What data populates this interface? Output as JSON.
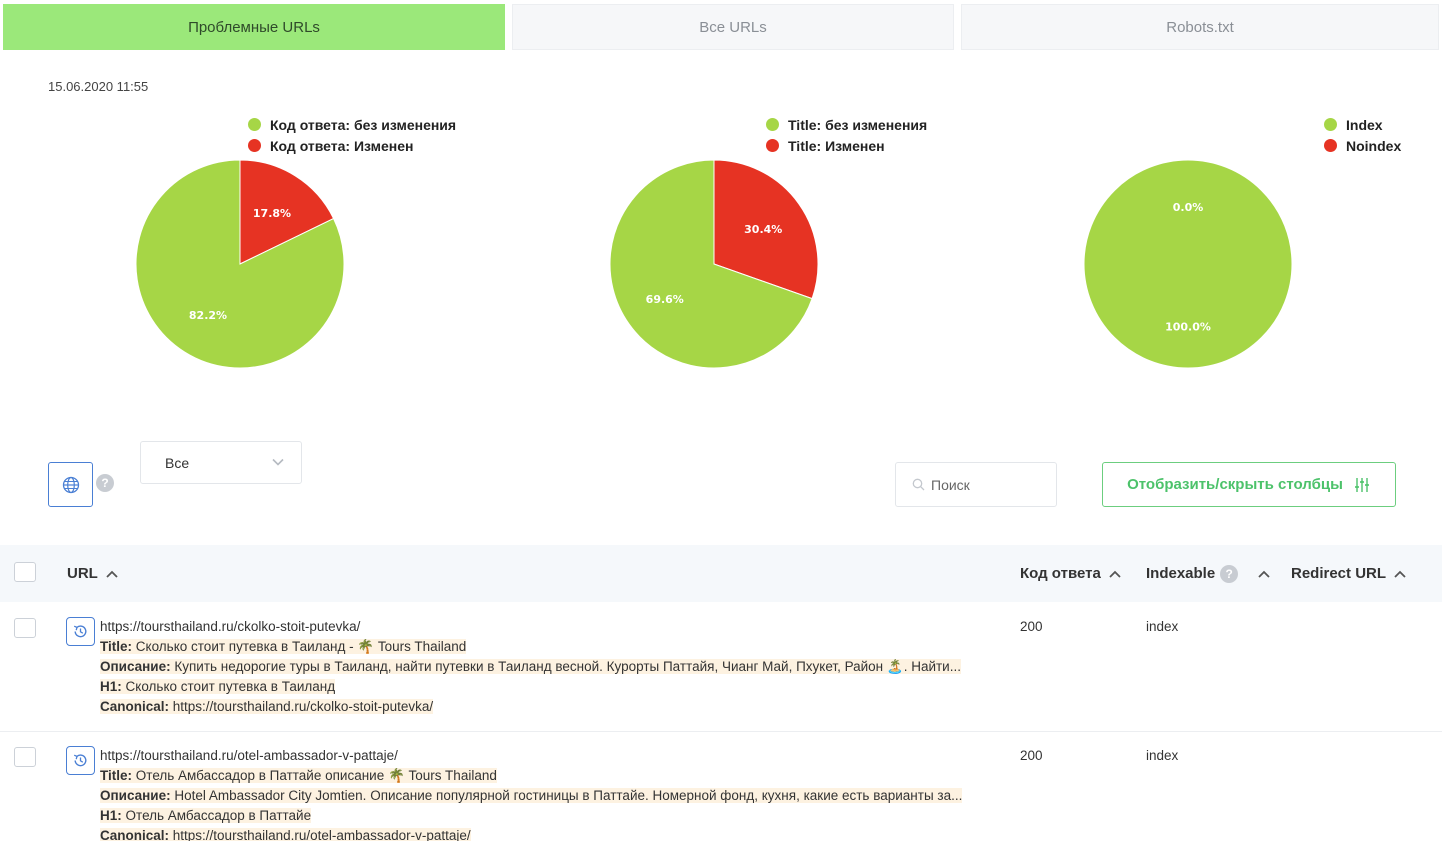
{
  "tabs": [
    {
      "label": "Проблемные URLs",
      "active": true
    },
    {
      "label": "Все URLs",
      "active": false
    },
    {
      "label": "Robots.txt",
      "active": false
    }
  ],
  "timestamp": "15.06.2020 11:55",
  "colors": {
    "green": "#a6d646",
    "red": "#e63323",
    "accent": "#9be87a",
    "primary_border": "#4a7fd4",
    "button_green": "#4cc26a"
  },
  "charts": [
    {
      "legend": [
        {
          "label": "Код ответа: без изменения",
          "color": "#a6d646"
        },
        {
          "label": "Код ответа: Изменен",
          "color": "#e63323"
        }
      ]
    },
    {
      "legend": [
        {
          "label": "Title: без изменения",
          "color": "#a6d646"
        },
        {
          "label": "Title: Изменен",
          "color": "#e63323"
        }
      ]
    },
    {
      "legend": [
        {
          "label": "Index",
          "color": "#a6d646"
        },
        {
          "label": "Noindex",
          "color": "#e63323"
        }
      ]
    }
  ],
  "chart_data": [
    {
      "type": "pie",
      "title": "",
      "labels": [
        "Код ответа: без изменения",
        "Код ответа: Изменен"
      ],
      "values": [
        82.2,
        17.8
      ],
      "value_labels": [
        "82.2%",
        "17.8%"
      ],
      "colors": [
        "#a6d646",
        "#e63323"
      ],
      "legend_position": "top-right"
    },
    {
      "type": "pie",
      "title": "",
      "labels": [
        "Title: без изменения",
        "Title: Изменен"
      ],
      "values": [
        69.6,
        30.4
      ],
      "value_labels": [
        "69.6%",
        "30.4%"
      ],
      "colors": [
        "#a6d646",
        "#e63323"
      ],
      "legend_position": "top-right"
    },
    {
      "type": "pie",
      "title": "",
      "labels": [
        "Index",
        "Noindex"
      ],
      "values": [
        100.0,
        0.0
      ],
      "value_labels": [
        "100.0%",
        "0.0%"
      ],
      "colors": [
        "#a6d646",
        "#e63323"
      ],
      "legend_position": "top-right"
    }
  ],
  "filters": {
    "help_mark": "?",
    "select_value": "Все",
    "search_placeholder": "Поиск",
    "columns_button": "Отобразить/скрыть столбцы"
  },
  "table": {
    "headers": {
      "url": "URL",
      "code": "Код ответа",
      "indexable": "Indexable",
      "redirect": "Redirect URL"
    },
    "rows": [
      {
        "url": "https://toursthailand.ru/ckolko-stoit-putevka/",
        "title_key": "Title:",
        "title": "Сколько стоит путевка в Таиланд - 🌴 Tours Thailand",
        "desc_key": "Описание:",
        "desc": "Купить недорогие туры в Таиланд, найти путевки в Таиланд весной. Курорты Паттайя, Чианг Май, Пхукет, Район 🏝️. Найти...",
        "h1_key": "H1:",
        "h1": "Сколько стоит путевка в Таиланд",
        "canonical_key": "Canonical:",
        "canonical": "https://toursthailand.ru/ckolko-stoit-putevka/",
        "code": "200",
        "indexable": "index"
      },
      {
        "url": "https://toursthailand.ru/otel-ambassador-v-pattaje/",
        "title_key": "Title:",
        "title": "Отель Амбассадор в Паттайе описание 🌴 Tours Thailand",
        "desc_key": "Описание:",
        "desc": "Hotel Ambassador City Jomtien. Описание популярной гостиницы в Паттайе. Номерной фонд, кухня, какие есть варианты за...",
        "h1_key": "H1:",
        "h1": "Отель Амбассадор в Паттайе",
        "canonical_key": "Canonical:",
        "canonical": "https://toursthailand.ru/otel-ambassador-v-pattaje/",
        "code": "200",
        "indexable": "index"
      }
    ]
  }
}
